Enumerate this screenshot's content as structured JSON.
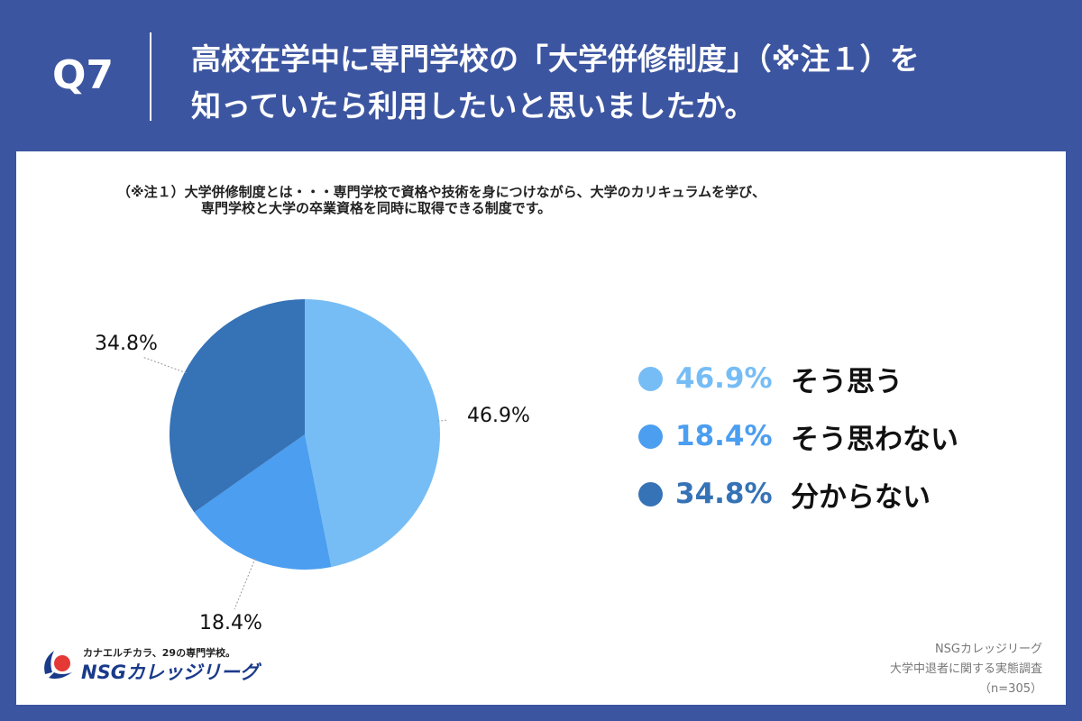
{
  "header": {
    "question_number": "Q7",
    "title_line1": "高校在学中に専門学校の「大学併修制度」（※注１）を",
    "title_line2": "知っていたら利用したいと思いましたか。"
  },
  "note": {
    "line1": "（※注１）大学併修制度とは・・・専門学校で資格や技術を身につけながら、大学のカリキュラムを学び、",
    "line2": "専門学校と大学の卒業資格を同時に取得できる制度です。"
  },
  "chart_data": {
    "type": "pie",
    "categories": [
      "そう思う",
      "そう思わない",
      "分からない"
    ],
    "values": [
      46.9,
      18.4,
      34.8
    ],
    "labels": [
      "46.9%",
      "18.4%",
      "34.8%"
    ],
    "colors": [
      "#77bdf5",
      "#4b9ef0",
      "#3572b6"
    ],
    "legend_position": "right"
  },
  "legend": [
    {
      "pct": "46.9%",
      "label": "そう思う",
      "color": "#77bdf5",
      "text_color": "#77bdf5"
    },
    {
      "pct": "18.4%",
      "label": "そう思わない",
      "color": "#4b9ef0",
      "text_color": "#4b9ef0"
    },
    {
      "pct": "34.8%",
      "label": "分からない",
      "color": "#3572b6",
      "text_color": "#3572b6"
    }
  ],
  "brand": {
    "tagline": "カナエルチカラ、29の専門学校。",
    "name": "NSGカレッジリーグ"
  },
  "source": {
    "line1": "NSGカレッジリーグ",
    "line2": "大学中退者に関する実態調査",
    "line3": "（n=305）"
  }
}
